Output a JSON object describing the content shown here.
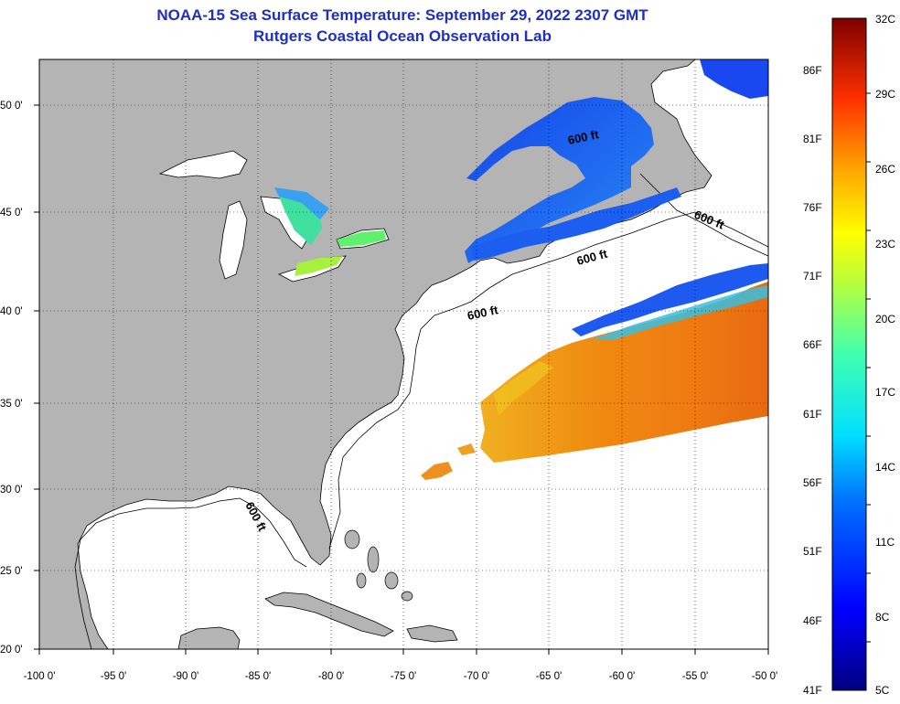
{
  "header": {
    "title": "NOAA-15 Sea Surface Temperature:  September 29, 2022 2307 GMT",
    "subtitle": "Rutgers Coastal Ocean Observation Lab"
  },
  "map": {
    "lat_labels": [
      "50 0'",
      "45 0'",
      "40 0'",
      "35 0'",
      "30 0'",
      "25 0'",
      "20 0'"
    ],
    "lon_labels": [
      "-100 0'",
      "-95 0'",
      "-90 0'",
      "-85 0'",
      "-80 0'",
      "-75 0'",
      "-70 0'",
      "-65 0'",
      "-60 0'",
      "-55 0'",
      "-50 0'"
    ],
    "depth_label": "600 ft",
    "colors": {
      "land": "#b4b4b4",
      "ocean": "#ffffff",
      "title": "#1f2fbf"
    }
  },
  "colorbar": {
    "fahrenheit": [
      "86F",
      "81F",
      "76F",
      "71F",
      "66F",
      "61F",
      "56F",
      "51F",
      "46F",
      "41F"
    ],
    "celsius": [
      "32C",
      "29C",
      "26C",
      "23C",
      "20C",
      "17C",
      "14C",
      "11C",
      "8C",
      "5C"
    ]
  }
}
